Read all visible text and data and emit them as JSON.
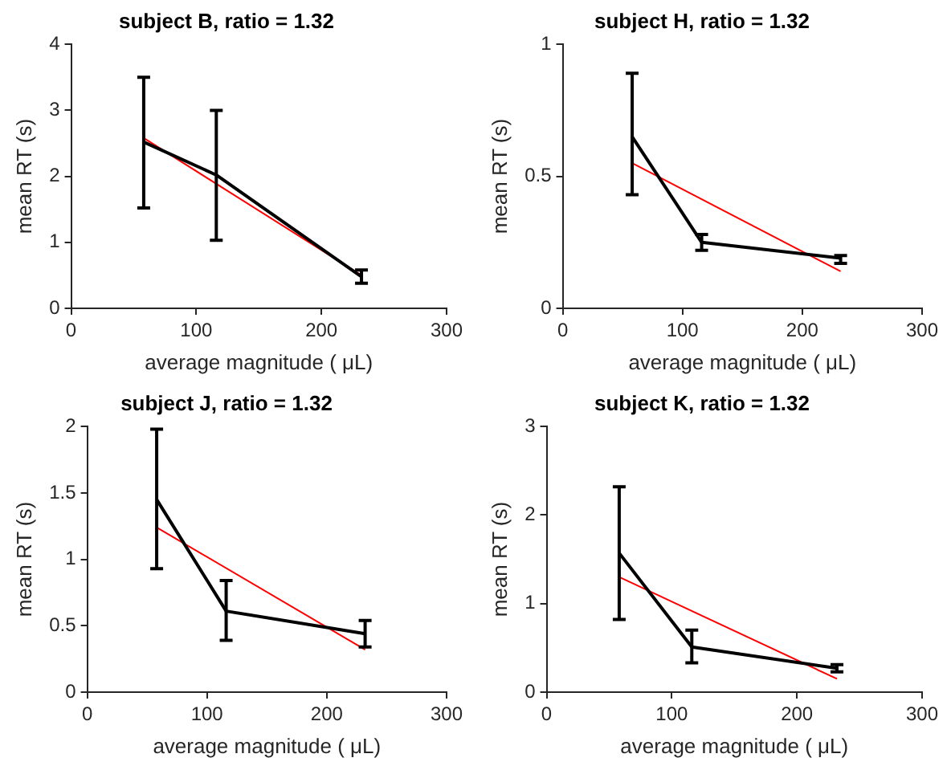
{
  "chart_data": [
    {
      "type": "line",
      "title": "subject B, ratio = 1.32",
      "xlabel": "average magnitude ( μL)",
      "ylabel": "mean RT (s)",
      "xlim": [
        0,
        300
      ],
      "xticks": [
        0,
        100,
        200,
        300
      ],
      "ylim": [
        0,
        4
      ],
      "yticks": [
        0,
        1,
        2,
        3,
        4
      ],
      "grid": false,
      "legend": false,
      "line_style": "solid",
      "series": [
        {
          "color": "#000000",
          "x": [
            58,
            116,
            232
          ],
          "values": [
            2.52,
            2.02,
            0.48
          ],
          "errors": [
            [
              1.52,
              3.5
            ],
            [
              1.03,
              3.0
            ],
            [
              0.38,
              0.58
            ]
          ]
        },
        {
          "type": "line",
          "color": "#ff0000",
          "x": [
            58,
            232
          ],
          "values": [
            2.58,
            0.5
          ]
        }
      ]
    },
    {
      "type": "line",
      "title": "subject H, ratio = 1.32",
      "xlabel": "average magnitude ( μL)",
      "ylabel": "mean RT (s)",
      "xlim": [
        0,
        300
      ],
      "xticks": [
        0,
        100,
        200,
        300
      ],
      "ylim": [
        0,
        1
      ],
      "yticks": [
        0,
        0.5,
        1
      ],
      "grid": false,
      "legend": false,
      "line_style": "solid",
      "series": [
        {
          "color": "#000000",
          "x": [
            58,
            116,
            232
          ],
          "values": [
            0.65,
            0.25,
            0.19
          ],
          "errors": [
            [
              0.43,
              0.89
            ],
            [
              0.22,
              0.28
            ],
            [
              0.17,
              0.2
            ]
          ]
        },
        {
          "type": "line",
          "color": "#ff0000",
          "x": [
            58,
            232
          ],
          "values": [
            0.55,
            0.14
          ]
        }
      ]
    },
    {
      "type": "line",
      "title": "subject J, ratio = 1.32",
      "xlabel": "average magnitude ( μL)",
      "ylabel": "mean RT (s)",
      "xlim": [
        0,
        300
      ],
      "xticks": [
        0,
        100,
        200,
        300
      ],
      "ylim": [
        0,
        2
      ],
      "yticks": [
        0,
        0.5,
        1,
        1.5,
        2
      ],
      "grid": false,
      "legend": false,
      "line_style": "solid",
      "series": [
        {
          "color": "#000000",
          "x": [
            58,
            116,
            232
          ],
          "values": [
            1.45,
            0.61,
            0.44
          ],
          "errors": [
            [
              0.93,
              1.98
            ],
            [
              0.39,
              0.84
            ],
            [
              0.34,
              0.54
            ]
          ]
        },
        {
          "type": "line",
          "color": "#ff0000",
          "x": [
            58,
            232
          ],
          "values": [
            1.24,
            0.32
          ]
        }
      ]
    },
    {
      "type": "line",
      "title": "subject K, ratio = 1.32",
      "xlabel": "average magnitude ( μL)",
      "ylabel": "mean RT (s)",
      "xlim": [
        0,
        300
      ],
      "xticks": [
        0,
        100,
        200,
        300
      ],
      "ylim": [
        0,
        3
      ],
      "yticks": [
        0,
        1,
        2,
        3
      ],
      "grid": false,
      "legend": false,
      "line_style": "solid",
      "series": [
        {
          "color": "#000000",
          "x": [
            58,
            116,
            232
          ],
          "values": [
            1.57,
            0.51,
            0.27
          ],
          "errors": [
            [
              0.82,
              2.32
            ],
            [
              0.33,
              0.7
            ],
            [
              0.23,
              0.31
            ]
          ]
        },
        {
          "type": "line",
          "color": "#ff0000",
          "x": [
            58,
            232
          ],
          "values": [
            1.3,
            0.15
          ]
        }
      ]
    }
  ]
}
